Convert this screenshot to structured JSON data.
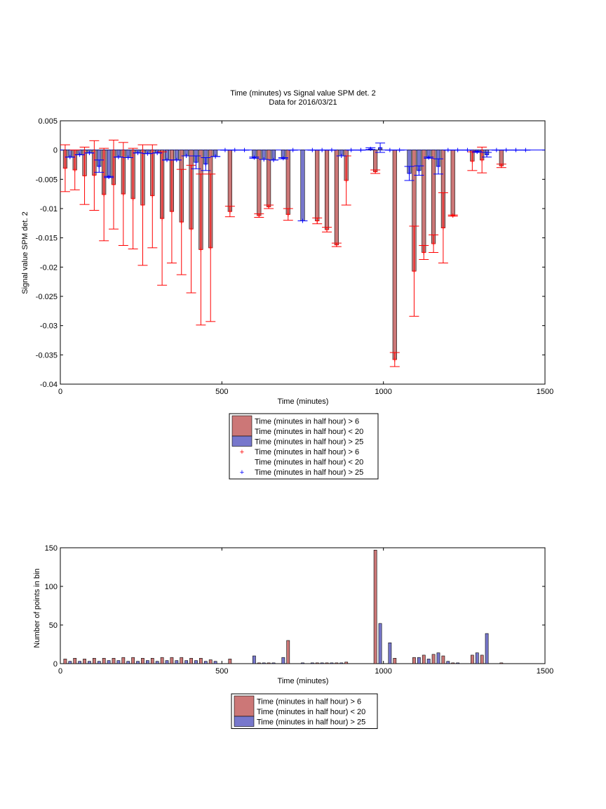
{
  "colors": {
    "series1_fill": "#cc7777",
    "series2_fill": "#7777cc",
    "series1_marker": "#ff0000",
    "series2_marker": "#0000ff",
    "axis": "#000000",
    "zero_line": "#0000ff"
  },
  "chart_data": [
    {
      "type": "bar",
      "title": "Time (minutes) vs Signal value SPM det. 2",
      "subtitle": "Data for 2016/03/21",
      "xlabel": "Time (minutes)",
      "ylabel": "Signal value SPM det. 2",
      "xlim": [
        0,
        1500
      ],
      "ylim": [
        -0.04,
        0.005
      ],
      "xticks": [
        "0",
        "500",
        "1000",
        "1500"
      ],
      "yticks": [
        "0.005",
        "0",
        "-0.005",
        "-0.01",
        "-0.015",
        "-0.02",
        "-0.025",
        "-0.03",
        "-0.035",
        "-0.04"
      ],
      "grid": false,
      "legend_position": "below",
      "legend": [
        "Time (minutes in half hour) > 6",
        "Time (minutes in half hour) < 20",
        "Time (minutes in half hour) > 25",
        "Time (minutes in half hour) > 6",
        "Time (minutes in half hour) < 20",
        "Time (minutes in half hour) > 25"
      ],
      "series": [
        {
          "x": [
            15,
            45,
            75,
            105,
            135,
            165,
            195,
            225,
            255,
            285,
            315,
            345,
            375,
            405,
            435,
            465,
            525,
            615,
            645,
            705,
            795,
            825,
            855,
            885,
            975,
            1035,
            1095,
            1125,
            1155,
            1185,
            1215,
            1275,
            1305,
            1365
          ],
          "values": [
            -0.0031,
            -0.0034,
            -0.0044,
            -0.0043,
            -0.0076,
            -0.0059,
            -0.0075,
            -0.0083,
            -0.0094,
            -0.0078,
            -0.0117,
            -0.0105,
            -0.0123,
            -0.0135,
            -0.017,
            -0.0167,
            -0.0105,
            -0.0112,
            -0.0097,
            -0.011,
            -0.0121,
            -0.0136,
            -0.0162,
            -0.0052,
            -0.0037,
            -0.0358,
            -0.0207,
            -0.0175,
            -0.016,
            -0.0133,
            -0.0112,
            -0.0019,
            -0.0017,
            -0.0027
          ],
          "err_low": [
            -0.0071,
            -0.0068,
            -0.0093,
            -0.0103,
            -0.0155,
            -0.0135,
            -0.0163,
            -0.0169,
            -0.0197,
            -0.0167,
            -0.0231,
            -0.0193,
            -0.0213,
            -0.0244,
            -0.0299,
            -0.0293,
            -0.0114,
            -0.0115,
            -0.01,
            -0.012,
            -0.0126,
            -0.014,
            -0.0165,
            -0.0094,
            -0.004,
            -0.037,
            -0.0284,
            -0.0187,
            -0.0175,
            -0.0193,
            -0.0113,
            -0.0035,
            -0.0039,
            -0.003
          ],
          "err_high": [
            0.0009,
            0.0,
            0.0005,
            0.0016,
            0.0003,
            0.0017,
            0.0013,
            0.0003,
            0.0009,
            0.0009,
            -0.0003,
            -0.0017,
            -0.0033,
            -0.0026,
            -0.0041,
            -0.0041,
            -0.0096,
            -0.0109,
            -0.0094,
            -0.01,
            -0.0116,
            -0.0132,
            -0.0159,
            -0.001,
            -0.0034,
            -0.0346,
            -0.013,
            -0.0163,
            -0.0145,
            -0.0073,
            -0.0111,
            -0.0003,
            0.0005,
            -0.0024
          ]
        },
        {
          "x": [
            30,
            60,
            90,
            120,
            150,
            180,
            210,
            240,
            270,
            300,
            330,
            360,
            390,
            420,
            450,
            480,
            510,
            540,
            570,
            600,
            630,
            660,
            690,
            720,
            750,
            780,
            810,
            840,
            870,
            900,
            930,
            960,
            990,
            1020,
            1050,
            1080,
            1110,
            1140,
            1170,
            1200,
            1230,
            1260,
            1290,
            1320,
            1350,
            1380,
            1410,
            1440
          ],
          "values": [
            -0.0012,
            -0.0008,
            -0.0005,
            -0.0028,
            -0.0046,
            -0.0012,
            -0.0013,
            -0.0005,
            -0.0006,
            -0.0005,
            -0.0017,
            -0.0017,
            -0.001,
            -0.0021,
            -0.0024,
            -0.0011,
            0.0,
            0.0,
            0.0,
            -0.0013,
            -0.0016,
            -0.0017,
            -0.0014,
            0.0,
            -0.0121,
            0.0,
            0.0,
            0.0,
            -0.001,
            0.0,
            0.0,
            0.0002,
            0.0004,
            0.0,
            0.0,
            -0.004,
            -0.0035,
            -0.0013,
            -0.0028,
            0.0,
            0.0,
            0.0,
            -0.0003,
            -0.0008,
            0.0,
            0.0,
            0.0,
            0.0
          ],
          "err_low": [
            -0.0012,
            -0.0008,
            -0.0005,
            -0.0038,
            -0.0047,
            -0.0012,
            -0.0013,
            -0.0005,
            -0.0006,
            -0.0005,
            -0.0017,
            -0.0017,
            -0.001,
            -0.0032,
            -0.0035,
            -0.0011,
            0.0,
            0.0,
            0.0,
            -0.0014,
            -0.0016,
            -0.0017,
            -0.0015,
            0.0,
            -0.0121,
            0.0,
            0.0,
            0.0,
            -0.001,
            0.0,
            0.0,
            0.0001,
            -0.0004,
            0.0,
            0.0,
            -0.0052,
            -0.0043,
            -0.0014,
            -0.0041,
            0.0,
            0.0,
            0.0,
            -0.0004,
            -0.0012,
            0.0,
            0.0,
            0.0,
            0.0
          ],
          "err_high": [
            -0.0012,
            -0.0008,
            -0.0005,
            -0.0017,
            -0.0045,
            -0.0012,
            -0.0013,
            -0.0005,
            -0.0006,
            -0.0005,
            -0.0017,
            -0.0017,
            -0.001,
            -0.001,
            -0.0013,
            -0.0011,
            0.0,
            0.0,
            0.0,
            -0.0012,
            -0.0016,
            -0.0017,
            -0.0013,
            0.0,
            -0.0121,
            0.0,
            0.0,
            0.0,
            -0.001,
            0.0,
            0.0,
            0.0004,
            0.0012,
            0.0,
            0.0,
            -0.0028,
            -0.0027,
            -0.0012,
            -0.0015,
            0.0,
            0.0,
            0.0,
            -0.0002,
            -0.0004,
            0.0,
            0.0,
            0.0,
            0.0
          ]
        }
      ]
    },
    {
      "type": "bar",
      "xlabel": "Time (minutes)",
      "ylabel": "Number of points in bin",
      "xlim": [
        0,
        1500
      ],
      "ylim": [
        0,
        150
      ],
      "xticks": [
        "0",
        "500",
        "1000",
        "1500"
      ],
      "yticks": [
        "150",
        "100",
        "50",
        "0"
      ],
      "grid": false,
      "legend_position": "below",
      "legend": [
        "Time (minutes in half hour) > 6",
        "Time (minutes in half hour) < 20",
        "Time (minutes in half hour) > 25"
      ],
      "series": [
        {
          "x": [
            15,
            45,
            75,
            105,
            135,
            165,
            195,
            225,
            255,
            285,
            315,
            345,
            375,
            405,
            435,
            465,
            525,
            615,
            645,
            705,
            795,
            825,
            855,
            885,
            975,
            1035,
            1095,
            1125,
            1155,
            1185,
            1215,
            1275,
            1305,
            1365
          ],
          "values": [
            6,
            7,
            6,
            7,
            7,
            7,
            8,
            8,
            7,
            7,
            8,
            8,
            8,
            7,
            7,
            5,
            6,
            1,
            1,
            30,
            1,
            1,
            1,
            2,
            147,
            7,
            8,
            11,
            12,
            10,
            1,
            11,
            11,
            1
          ]
        },
        {
          "x": [
            30,
            60,
            90,
            120,
            150,
            180,
            210,
            240,
            270,
            300,
            330,
            360,
            390,
            420,
            450,
            480,
            600,
            630,
            660,
            690,
            750,
            780,
            810,
            840,
            870,
            990,
            1020,
            1110,
            1140,
            1170,
            1200,
            1230,
            1290,
            1320
          ],
          "values": [
            3,
            3,
            3,
            3,
            4,
            4,
            3,
            3,
            4,
            3,
            4,
            4,
            4,
            4,
            3,
            3,
            10,
            1,
            1,
            8,
            1,
            1,
            1,
            1,
            1,
            52,
            27,
            8,
            6,
            14,
            3,
            1,
            14,
            39
          ]
        }
      ]
    }
  ]
}
